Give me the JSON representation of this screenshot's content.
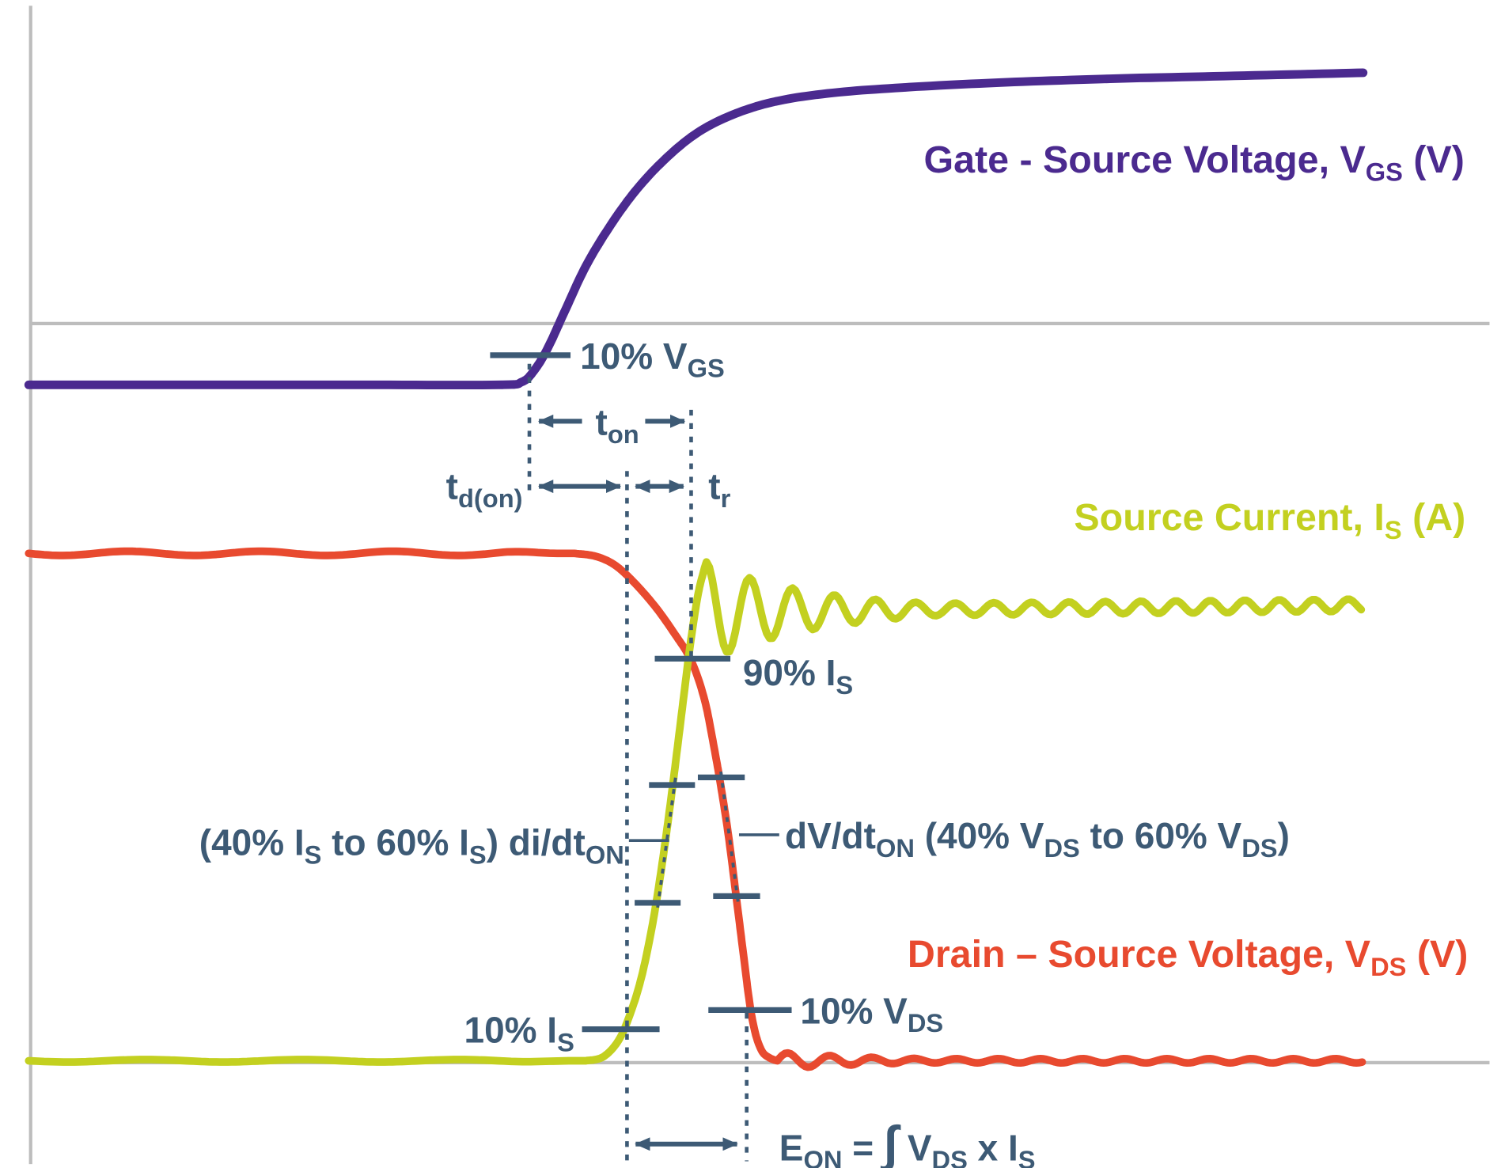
{
  "colors": {
    "gate": "#4b2a8f",
    "source": "#c3d020",
    "drain": "#e84a2f",
    "annotation": "#3d5a75",
    "grid": "#bdbdbd"
  },
  "curve_labels": {
    "gate": {
      "pre": "Gate - Source Voltage, V",
      "sub": "GS",
      "post": " (V)"
    },
    "source": {
      "pre": "Source Current, I",
      "sub": "S",
      "post": " (A)"
    },
    "drain": {
      "pre": "Drain – Source Voltage, V",
      "sub": "DS",
      "post": " (V)"
    }
  },
  "annotations": {
    "vgs10": {
      "pre": "10% V",
      "sub": "GS"
    },
    "ton": {
      "pre": "t",
      "sub": "on"
    },
    "tdon": {
      "pre": "t",
      "sub": "d(on)"
    },
    "tr": {
      "pre": "t",
      "sub": "r"
    },
    "is90": {
      "pre": "90% I",
      "sub": "S"
    },
    "didt": {
      "p1": "(40% I",
      "s1": "S",
      "p2": " to 60% I",
      "s2": "S",
      "p3": ") di/dt",
      "s3": "ON"
    },
    "dvdt": {
      "p1": "dV/dt",
      "s1": "ON",
      "p2": " (40% V",
      "s2": "DS",
      "p3": " to 60% V",
      "s3": "DS",
      "p4": ")"
    },
    "is10": {
      "pre": "10% I",
      "sub": "S"
    },
    "vds10": {
      "pre": "10% V",
      "sub": "DS"
    },
    "eon": {
      "p1": "E",
      "s1": "ON",
      "p2": " = ",
      "integral": "∫",
      "p3": " V",
      "s3": "DS",
      "p4": " x I",
      "s4": "S"
    }
  }
}
